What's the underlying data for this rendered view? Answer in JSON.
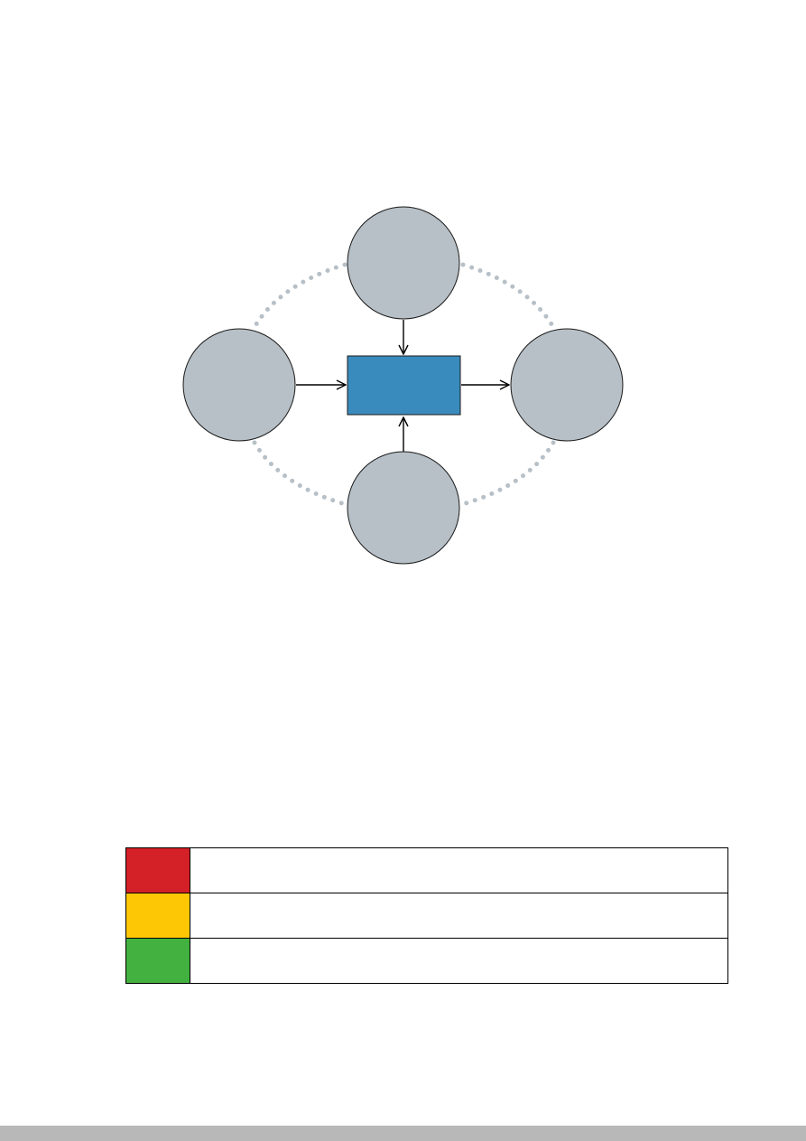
{
  "diagram": {
    "colors": {
      "node_fill": "#b7c0c7",
      "node_stroke": "#1a1a1a",
      "center_fill": "#3a8bbd",
      "dots": "#b7c0c7",
      "arrow": "#000000"
    },
    "nodes": {
      "top": "",
      "left": "",
      "right": "",
      "bottom": "",
      "center": ""
    }
  },
  "legend": {
    "rows": [
      {
        "color": "#d42027",
        "label": ""
      },
      {
        "color": "#fdc705",
        "label": ""
      },
      {
        "color": "#42b13f",
        "label": ""
      }
    ]
  },
  "footer": {
    "color": "#b8b8b8"
  }
}
